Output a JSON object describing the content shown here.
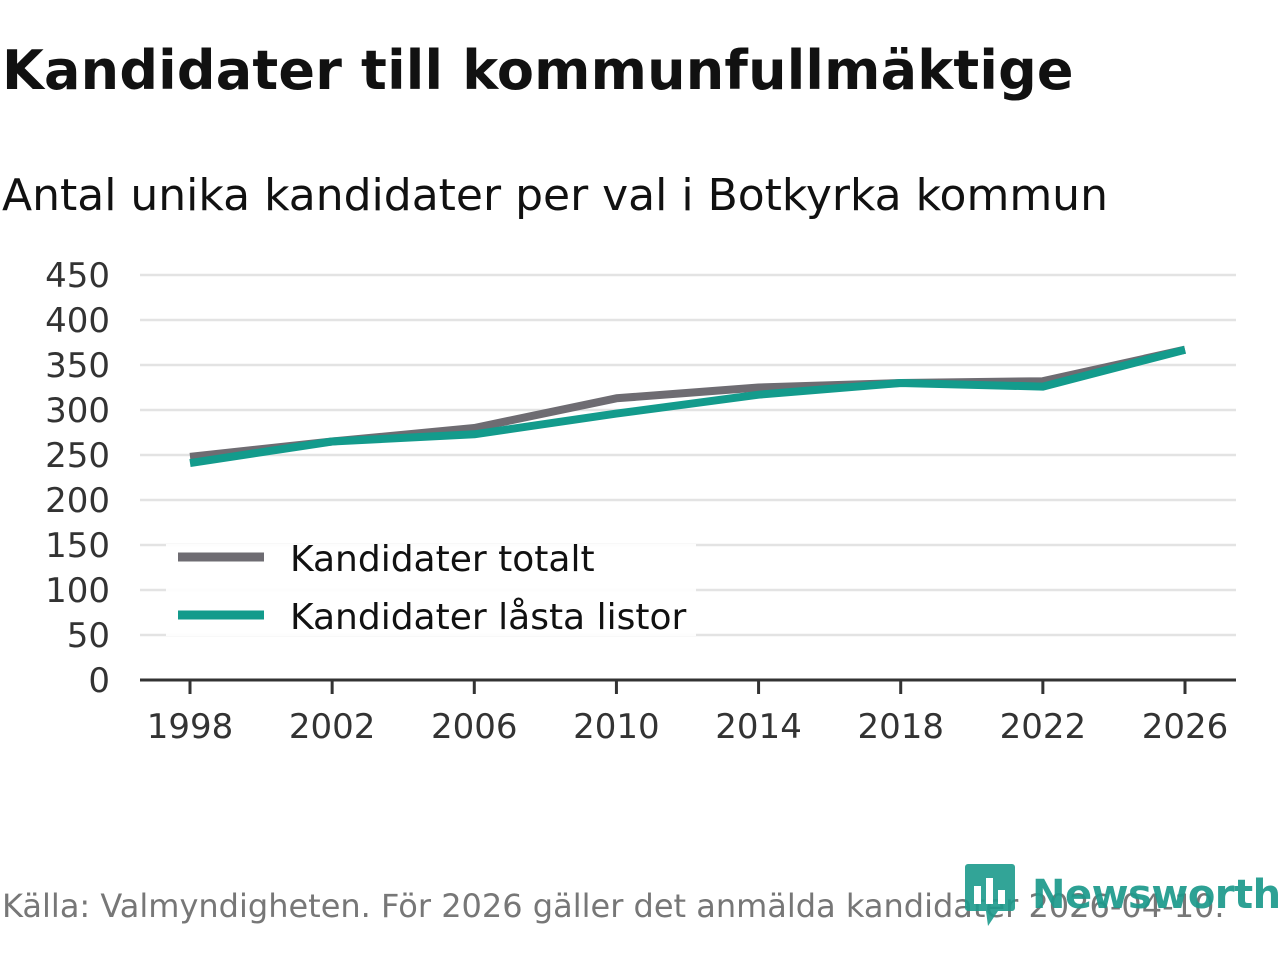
{
  "title": "Kandidater till kommunfullmäktige",
  "subtitle": "Antal unika kandidater per val i Botkyrka kommun",
  "source": "Källa: Valmyndigheten. För 2026 gäller det anmälda kandidater 2026-04-10.",
  "brand": {
    "name": "Newsworthy",
    "color": "#1c9a8c",
    "icon": "newsworthy-logo-icon"
  },
  "colors": {
    "grid": "#e3e3e3",
    "axis": "#333333",
    "series_total": "#6e6c72",
    "series_locked": "#139b8c"
  },
  "chart_data": {
    "type": "line",
    "title": "Kandidater till kommunfullmäktige",
    "subtitle": "Antal unika kandidater per val i Botkyrka kommun",
    "xlabel": "",
    "ylabel": "",
    "x": [
      1998,
      2002,
      2006,
      2010,
      2014,
      2018,
      2022,
      2026
    ],
    "x_tick_labels": [
      "1998",
      "2002",
      "2006",
      "2010",
      "2014",
      "2018",
      "2022",
      "2026"
    ],
    "ylim": [
      0,
      450
    ],
    "y_ticks": [
      0,
      50,
      100,
      150,
      200,
      250,
      300,
      350,
      400,
      450
    ],
    "y_tick_labels": [
      "0",
      "50",
      "100",
      "150",
      "200",
      "250",
      "300",
      "350",
      "400",
      "450"
    ],
    "grid": true,
    "legend_position": "bottom-left",
    "series": [
      {
        "name": "Kandidater totalt",
        "color": "#6e6c72",
        "values": [
          248,
          265,
          280,
          313,
          325,
          330,
          332,
          367
        ]
      },
      {
        "name": "Kandidater låsta listor",
        "color": "#139b8c",
        "values": [
          241,
          265,
          273,
          296,
          317,
          330,
          326,
          367
        ]
      }
    ]
  }
}
